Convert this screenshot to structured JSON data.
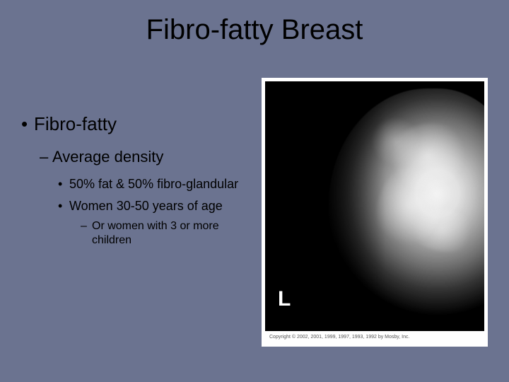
{
  "title": "Fibro-fatty Breast",
  "bullets": {
    "l1": "Fibro-fatty",
    "l2": "Average density",
    "l3a": "50% fat & 50% fibro-glandular",
    "l3b": "Women 30-50 years of age",
    "l4": "Or women with 3 or more children"
  },
  "image": {
    "side_marker": "L",
    "copyright": "Copyright © 2002, 2001, 1999, 1997, 1993, 1992 by Mosby, Inc.",
    "background_color": "#000000",
    "frame_color": "#ffffff",
    "description": "Grayscale mammogram, mediolateral oblique view, fibro-fatty density pattern"
  },
  "slide": {
    "background_color": "#6b7390",
    "title_fontsize": 40,
    "text_color": "#000000",
    "font_family": "Arial"
  }
}
